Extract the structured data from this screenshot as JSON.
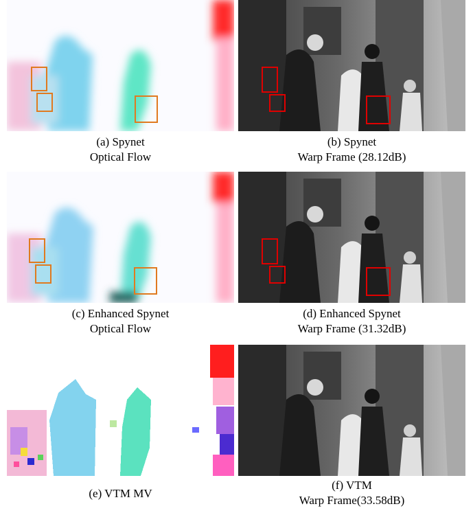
{
  "figure": {
    "panels": [
      {
        "caption_line1": "(a) Spynet",
        "caption_line2": "Optical Flow",
        "kind": "flow",
        "highlight_color": "#e07a1f"
      },
      {
        "caption_line1": "(b) Spynet",
        "caption_line2": "Warp Frame (28.12dB)",
        "kind": "warp",
        "highlight_color": "#e00000"
      },
      {
        "caption_line1": "(c) Enhanced Spynet",
        "caption_line2": "Optical Flow",
        "kind": "flow",
        "highlight_color": "#e07a1f"
      },
      {
        "caption_line1": "(d) Enhanced Spynet",
        "caption_line2": "Warp Frame (31.32dB)",
        "kind": "warp",
        "highlight_color": "#e00000"
      },
      {
        "caption_line1": "(e) VTM MV",
        "caption_line2": "",
        "kind": "mv"
      },
      {
        "caption_line1": "(f) VTM",
        "caption_line2": "Warp Frame(33.58dB)",
        "kind": "warp"
      }
    ]
  }
}
